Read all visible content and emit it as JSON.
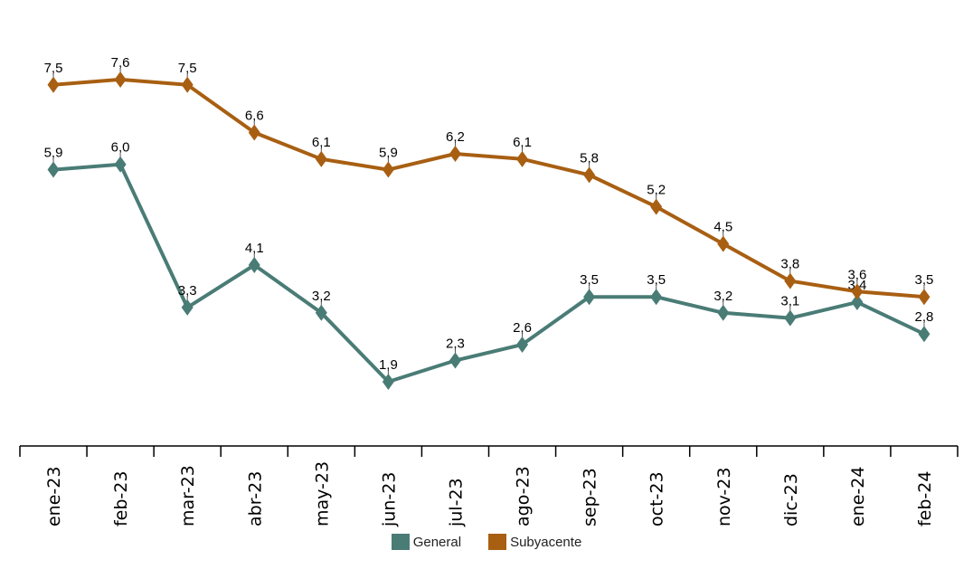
{
  "chart_data": {
    "type": "line",
    "categories": [
      "ene-23",
      "feb-23",
      "mar-23",
      "abr-23",
      "may-23",
      "jun-23",
      "jul-23",
      "ago-23",
      "sep-23",
      "oct-23",
      "nov-23",
      "dic-23",
      "ene-24",
      "feb-24"
    ],
    "series": [
      {
        "name": "General",
        "color": "#4a7c76",
        "values": [
          5.9,
          6.0,
          3.3,
          4.1,
          3.2,
          1.9,
          2.3,
          2.6,
          3.5,
          3.5,
          3.2,
          3.1,
          3.4,
          2.8
        ],
        "labels": [
          "5,9",
          "6,0",
          "3,3",
          "4,1",
          "3,2",
          "1,9",
          "2,3",
          "2,6",
          "3,5",
          "3,5",
          "3,2",
          "3,1",
          "3,4",
          "2,8"
        ]
      },
      {
        "name": "Subyacente",
        "color": "#a85f12",
        "values": [
          7.5,
          7.6,
          7.5,
          6.6,
          6.1,
          5.9,
          6.2,
          6.1,
          5.8,
          5.2,
          4.5,
          3.8,
          3.6,
          3.5
        ],
        "labels": [
          "7,5",
          "7,6",
          "7,5",
          "6,6",
          "6,1",
          "5,9",
          "6,2",
          "6,1",
          "5,8",
          "5,2",
          "4,5",
          "3,8",
          "3,6",
          "3,5"
        ]
      }
    ],
    "ylim": [
      0,
      8
    ],
    "grid": false,
    "legend_position": "bottom",
    "marker": "diamond"
  }
}
